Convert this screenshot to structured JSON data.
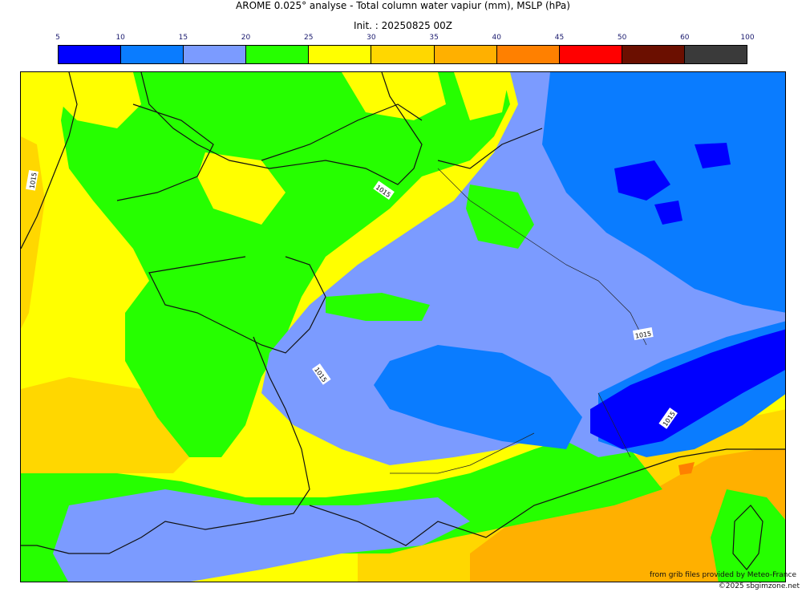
{
  "header": {
    "title": "AROME 0.025° analyse - Total column water vapiur (mm), MSLP (hPa)",
    "init": "Init. : 20250825 00Z"
  },
  "colorbar": {
    "ticks": [
      "5",
      "10",
      "15",
      "20",
      "25",
      "30",
      "35",
      "40",
      "45",
      "50",
      "60",
      "100"
    ],
    "colors": [
      "#0000ff",
      "#0a7cff",
      "#7b9bff",
      "#26ff00",
      "#ffff00",
      "#ffd700",
      "#ffb000",
      "#ff8000",
      "#ff0000",
      "#6b0f00",
      "#3a3a3a"
    ]
  },
  "map": {
    "isobar_labels": [
      "1015",
      "1015",
      "1015",
      "1015",
      "1015"
    ],
    "palette": {
      "sea_yellow": "#ffff00",
      "green": "#26ff00",
      "light_blue": "#7b9bff",
      "blue": "#0a7cff",
      "dark_blue": "#0000ff",
      "gold": "#ffd700",
      "orange": "#ffb000",
      "deep_orange": "#ff8000"
    }
  },
  "credits": {
    "provider": "from grib files provided by Meteo-France",
    "copyright": "©2025 sbgimzone.net"
  }
}
